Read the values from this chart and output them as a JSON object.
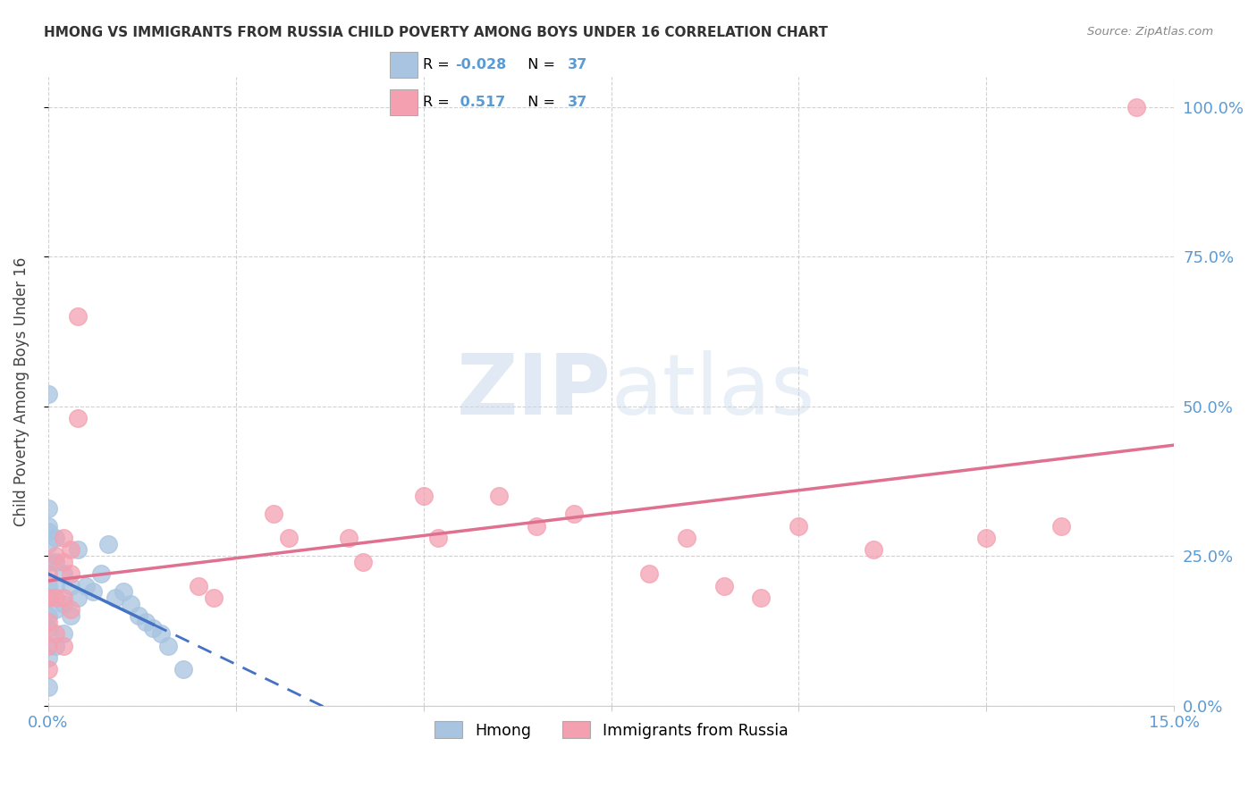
{
  "title": "HMONG VS IMMIGRANTS FROM RUSSIA CHILD POVERTY AMONG BOYS UNDER 16 CORRELATION CHART",
  "source": "Source: ZipAtlas.com",
  "ylabel_label": "Child Poverty Among Boys Under 16",
  "xlim": [
    0.0,
    0.15
  ],
  "ylim": [
    0.0,
    1.05
  ],
  "hmong_color": "#a8c4e0",
  "russia_color": "#f4a0b0",
  "hmong_line_color": "#4472c4",
  "russia_line_color": "#e07090",
  "hmong_R": -0.028,
  "hmong_N": 37,
  "russia_R": 0.517,
  "russia_N": 37,
  "legend_hmong": "Hmong",
  "legend_russia": "Immigrants from Russia",
  "watermark_zip": "ZIP",
  "watermark_atlas": "atlas",
  "hmong_x": [
    0.0,
    0.0,
    0.0,
    0.0,
    0.0,
    0.0,
    0.0,
    0.0,
    0.0,
    0.0,
    0.0,
    0.0,
    0.001,
    0.001,
    0.001,
    0.001,
    0.001,
    0.002,
    0.002,
    0.002,
    0.003,
    0.003,
    0.004,
    0.004,
    0.005,
    0.006,
    0.007,
    0.008,
    0.009,
    0.01,
    0.011,
    0.012,
    0.013,
    0.014,
    0.015,
    0.016,
    0.018
  ],
  "hmong_y": [
    0.52,
    0.33,
    0.3,
    0.29,
    0.27,
    0.24,
    0.2,
    0.18,
    0.15,
    0.13,
    0.08,
    0.03,
    0.28,
    0.24,
    0.2,
    0.16,
    0.1,
    0.22,
    0.17,
    0.12,
    0.2,
    0.15,
    0.26,
    0.18,
    0.2,
    0.19,
    0.22,
    0.27,
    0.18,
    0.19,
    0.17,
    0.15,
    0.14,
    0.13,
    0.12,
    0.1,
    0.06
  ],
  "russia_x": [
    0.0,
    0.0,
    0.0,
    0.0,
    0.0,
    0.001,
    0.001,
    0.001,
    0.002,
    0.002,
    0.002,
    0.002,
    0.003,
    0.003,
    0.003,
    0.004,
    0.004,
    0.02,
    0.022,
    0.03,
    0.032,
    0.04,
    0.042,
    0.05,
    0.052,
    0.06,
    0.065,
    0.07,
    0.08,
    0.085,
    0.09,
    0.095,
    0.1,
    0.11,
    0.125,
    0.135,
    0.145
  ],
  "russia_y": [
    0.22,
    0.18,
    0.14,
    0.1,
    0.06,
    0.25,
    0.18,
    0.12,
    0.28,
    0.24,
    0.18,
    0.1,
    0.26,
    0.22,
    0.16,
    0.65,
    0.48,
    0.2,
    0.18,
    0.32,
    0.28,
    0.28,
    0.24,
    0.35,
    0.28,
    0.35,
    0.3,
    0.32,
    0.22,
    0.28,
    0.2,
    0.18,
    0.3,
    0.26,
    0.28,
    0.3,
    1.0
  ],
  "background_color": "#ffffff",
  "grid_color": "#cccccc",
  "title_color": "#333333",
  "axis_label_color": "#444444",
  "tick_color": "#5b9bd5",
  "source_color": "#888888"
}
